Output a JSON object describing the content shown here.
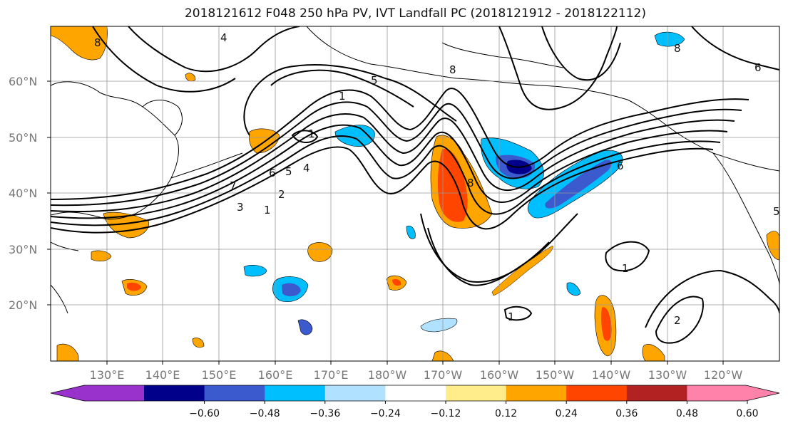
{
  "title": "2018121612 F048 250 hPa PV, IVT Landfall PC (2018121912 - 2018122112)",
  "lat_labels": [
    "60°N",
    "50°N",
    "40°N",
    "30°N",
    "20°N"
  ],
  "lon_labels": [
    "130°E",
    "140°E",
    "150°E",
    "160°E",
    "170°E",
    "180°W",
    "170°W",
    "160°W",
    "150°W",
    "140°W",
    "130°W",
    "120°W"
  ],
  "colorbar": {
    "colors": [
      "#9932cc",
      "#00008b",
      "#3a5acd",
      "#00bfff",
      "#b0e2ff",
      "#ffffff",
      "#ffec8b",
      "#ffa500",
      "#ff4500",
      "#b22222",
      "#ff82ab"
    ],
    "ticks": [
      "−0.60",
      "−0.48",
      "−0.36",
      "−0.24",
      "−0.12",
      "0.12",
      "0.24",
      "0.36",
      "0.48",
      "0.60"
    ]
  },
  "contour_labels": [
    "4",
    "5",
    "1",
    "1",
    "6",
    "5",
    "4",
    "7",
    "3",
    "2",
    "1",
    "8",
    "8",
    "8",
    "6",
    "1",
    "2",
    "1",
    "6",
    "8",
    "5"
  ]
}
